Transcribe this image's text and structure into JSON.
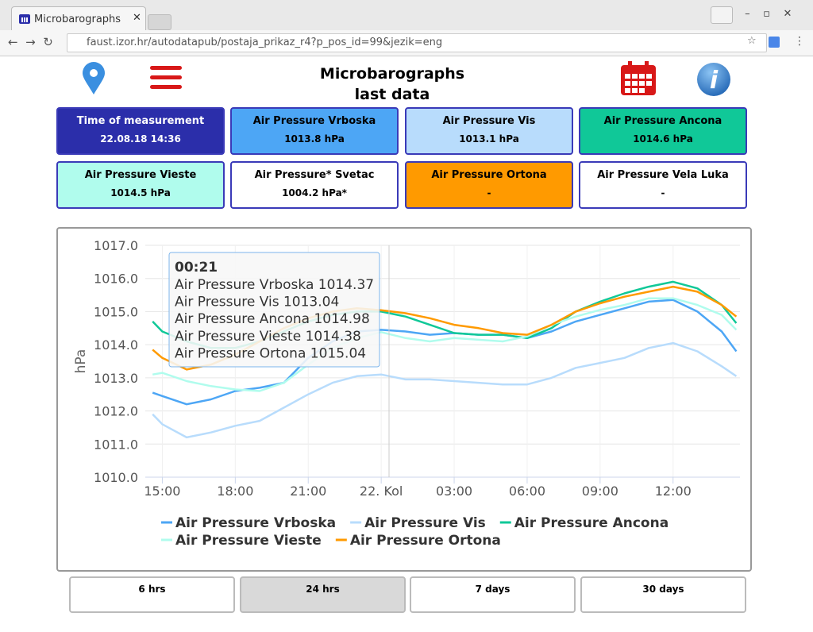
{
  "browser": {
    "tab_title": "Microbarographs",
    "url": "faust.izor.hr/autodatapub/postaja_prikaz_r4?p_pos_id=99&jezik=eng"
  },
  "header": {
    "title": "Microbarographs",
    "subtitle": "last data"
  },
  "cards": [
    {
      "title": "Time of measurement",
      "value": "22.08.18 14:36",
      "color": "#2b2eaa",
      "text_color": "#ffffff"
    },
    {
      "title": "Air Pressure Vrboska",
      "value": "1013.8 hPa",
      "color": "#4da6f5",
      "text_color": "#000000"
    },
    {
      "title": "Air Pressure Vis",
      "value": "1013.1 hPa",
      "color": "#b8dcfc",
      "text_color": "#000000"
    },
    {
      "title": "Air Pressure Ancona",
      "value": "1014.6 hPa",
      "color": "#10c898",
      "text_color": "#000000"
    },
    {
      "title": "Air Pressure Vieste",
      "value": "1014.5 hPa",
      "color": "#b0fced",
      "text_color": "#000000"
    },
    {
      "title": "Air Pressure* Svetac",
      "value": "1004.2 hPa*",
      "color": "#ffffff",
      "text_color": "#000000"
    },
    {
      "title": "Air Pressure Ortona",
      "value": "-",
      "color": "#ff9a00",
      "text_color": "#000000"
    },
    {
      "title": "Air Pressure Vela Luka",
      "value": "-",
      "color": "#ffffff",
      "text_color": "#000000"
    }
  ],
  "chart_data": {
    "type": "line",
    "y_label": "hPa",
    "grid": true,
    "xlim": [
      14.3,
      38.75
    ],
    "ylim": [
      1010,
      1017
    ],
    "xticks": [
      {
        "value": 15,
        "label": "15:00"
      },
      {
        "value": 18,
        "label": "18:00"
      },
      {
        "value": 21,
        "label": "21:00"
      },
      {
        "value": 24,
        "label": "22. Kol"
      },
      {
        "value": 27,
        "label": "03:00"
      },
      {
        "value": 30,
        "label": "06:00"
      },
      {
        "value": 33,
        "label": "09:00"
      },
      {
        "value": 36,
        "label": "12:00"
      }
    ],
    "yticks": [
      {
        "value": 1010,
        "label": "1010.0"
      },
      {
        "value": 1011,
        "label": "1011.0"
      },
      {
        "value": 1012,
        "label": "1012.0"
      },
      {
        "value": 1013,
        "label": "1013.0"
      },
      {
        "value": 1014,
        "label": "1014.0"
      },
      {
        "value": 1015,
        "label": "1015.0"
      },
      {
        "value": 1016,
        "label": "1016.0"
      },
      {
        "value": 1017,
        "label": "1017.0"
      }
    ],
    "x": [
      14.6,
      15,
      16,
      17,
      18,
      19,
      20,
      21,
      22,
      23,
      24,
      25,
      26,
      27,
      28,
      29,
      30,
      31,
      32,
      33,
      34,
      35,
      36,
      37,
      38,
      38.6
    ],
    "series": [
      {
        "name": "Air Pressure Vrboska",
        "color": "#4da6f5",
        "values": [
          1012.55,
          1012.45,
          1012.2,
          1012.35,
          1012.6,
          1012.7,
          1012.85,
          1013.6,
          1014.1,
          1014.4,
          1014.45,
          1014.4,
          1014.3,
          1014.35,
          1014.3,
          1014.3,
          1014.2,
          1014.4,
          1014.7,
          1014.9,
          1015.1,
          1015.3,
          1015.35,
          1015.0,
          1014.4,
          1013.8
        ]
      },
      {
        "name": "Air Pressure Vis",
        "color": "#b8dcfc",
        "values": [
          1011.9,
          1011.6,
          1011.2,
          1011.35,
          1011.55,
          1011.7,
          1012.1,
          1012.5,
          1012.85,
          1013.05,
          1013.1,
          1012.95,
          1012.95,
          1012.9,
          1012.85,
          1012.8,
          1012.8,
          1013.0,
          1013.3,
          1013.45,
          1013.6,
          1013.9,
          1014.05,
          1013.8,
          1013.35,
          1013.05
        ]
      },
      {
        "name": "Air Pressure Ancona",
        "color": "#10c898",
        "values": [
          1014.7,
          1014.4,
          1014.1,
          1013.9,
          1013.9,
          1014.1,
          1014.4,
          1014.7,
          1014.9,
          1015.0,
          1015.0,
          1014.85,
          1014.6,
          1014.35,
          1014.3,
          1014.3,
          1014.2,
          1014.5,
          1015.0,
          1015.3,
          1015.55,
          1015.75,
          1015.9,
          1015.7,
          1015.2,
          1014.65
        ]
      },
      {
        "name": "Air Pressure Vieste",
        "color": "#b0fced",
        "values": [
          1013.1,
          1013.15,
          1012.9,
          1012.75,
          1012.65,
          1012.6,
          1012.85,
          1013.4,
          1013.9,
          1014.2,
          1014.38,
          1014.2,
          1014.1,
          1014.2,
          1014.15,
          1014.1,
          1014.25,
          1014.6,
          1014.85,
          1015.05,
          1015.2,
          1015.4,
          1015.4,
          1015.2,
          1014.9,
          1014.45
        ]
      },
      {
        "name": "Air Pressure Ortona",
        "color": "#ff9a00",
        "values": [
          1013.85,
          1013.6,
          1013.25,
          1013.4,
          1013.7,
          1014.1,
          1014.5,
          1014.8,
          1015.0,
          1015.1,
          1015.04,
          1014.95,
          1014.8,
          1014.6,
          1014.5,
          1014.35,
          1014.3,
          1014.6,
          1015.0,
          1015.25,
          1015.45,
          1015.6,
          1015.75,
          1015.6,
          1015.2,
          1014.85
        ]
      }
    ],
    "tooltip": {
      "title": "00:21",
      "lines": [
        "Air Pressure Vrboska 1014.37",
        "Air Pressure Vis 1013.04",
        "Air Pressure Ancona 1014.98",
        "Air Pressure Vieste 1014.38",
        "Air Pressure Ortona 1015.04"
      ]
    }
  },
  "buttons": [
    "6 hrs",
    "24 hrs",
    "7 days",
    "30 days"
  ]
}
